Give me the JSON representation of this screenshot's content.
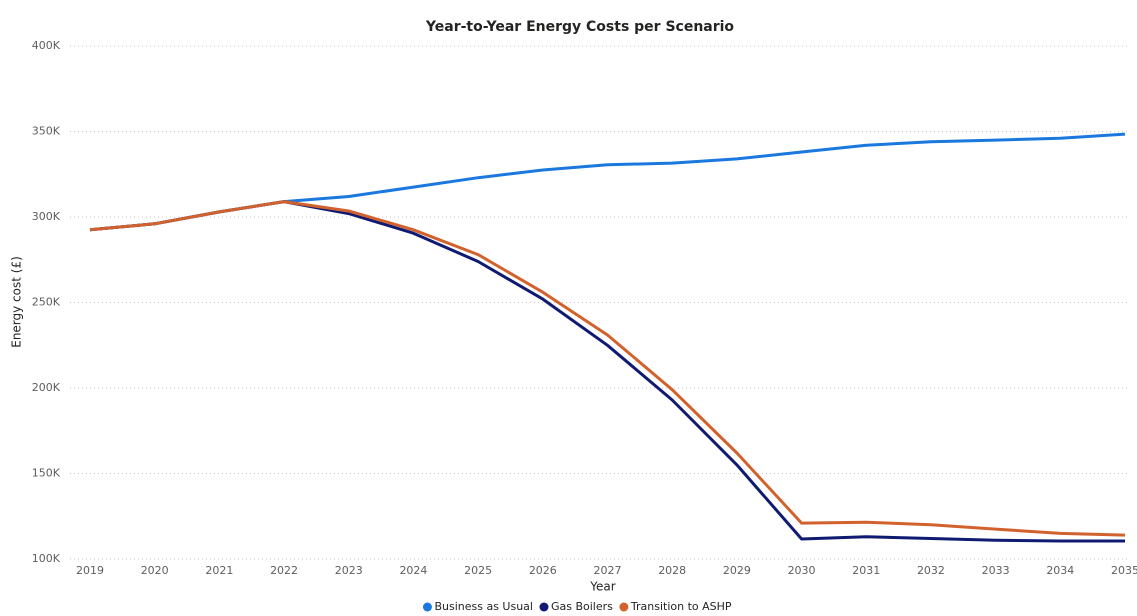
{
  "chart_data": {
    "type": "line",
    "title": "Year-to-Year Energy Costs per Scenario",
    "x_label": "Year",
    "y_label": "Energy cost (£)",
    "categories": [
      "2019",
      "2020",
      "2021",
      "2022",
      "2023",
      "2024",
      "2025",
      "2026",
      "2027",
      "2028",
      "2029",
      "2030",
      "2031",
      "2032",
      "2033",
      "2034",
      "2035"
    ],
    "series": [
      {
        "name": "Business as Usual",
        "color": "#1a78de",
        "values": [
          292500,
          296000,
          303000,
          309000,
          312000,
          317500,
          323000,
          327500,
          330500,
          331500,
          334000,
          338000,
          342000,
          344000,
          345000,
          346000,
          348500
        ]
      },
      {
        "name": "Gas Boilers",
        "color": "#0f1a72",
        "values": [
          292500,
          296000,
          303000,
          309000,
          302000,
          290500,
          274000,
          252000,
          225000,
          193000,
          155000,
          111700,
          113000,
          112000,
          111000,
          110500,
          110500
        ]
      },
      {
        "name": "Transition to ASHP",
        "color": "#d2622d",
        "values": [
          292500,
          296000,
          303000,
          309000,
          303500,
          292500,
          278000,
          256000,
          231000,
          199000,
          162000,
          121000,
          121500,
          120000,
          117500,
          115000,
          114000
        ]
      }
    ],
    "ylim": [
      100000,
      400000
    ],
    "yticks": [
      {
        "value": 100000,
        "label": "100K"
      },
      {
        "value": 150000,
        "label": "150K"
      },
      {
        "value": 200000,
        "label": "200K"
      },
      {
        "value": 250000,
        "label": "250K"
      },
      {
        "value": 300000,
        "label": "300K"
      },
      {
        "value": 350000,
        "label": "350K"
      },
      {
        "value": 400000,
        "label": "400K"
      }
    ],
    "grid": true,
    "legend": "bottom"
  }
}
